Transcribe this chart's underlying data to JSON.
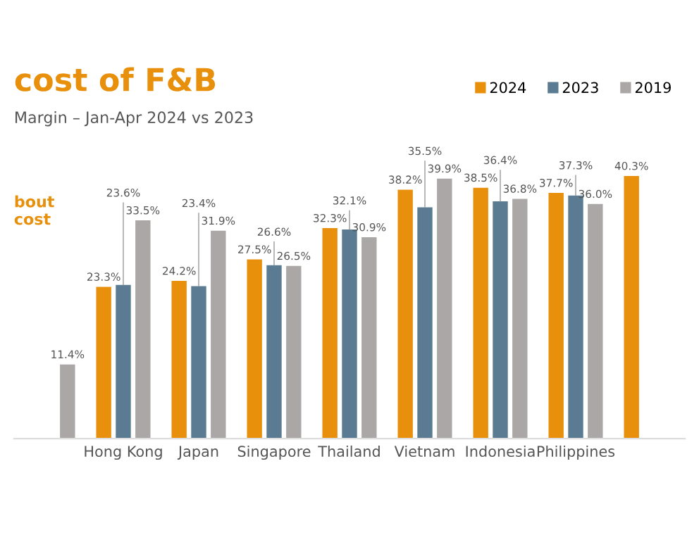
{
  "chart_data": {
    "type": "bar",
    "title": "cost of F&B",
    "subtitle": "Margin – Jan-Apr 2024 vs 2023",
    "annotations": [
      "bout\ncost"
    ],
    "categories": [
      null,
      "Hong Kong",
      "Japan",
      "Singapore",
      "Thailand",
      "Vietnam",
      "Indonesia",
      "Philippines",
      null
    ],
    "series": [
      {
        "name": "2024",
        "color": "#e8900c",
        "values": [
          null,
          23.3,
          24.2,
          27.5,
          32.3,
          38.2,
          38.5,
          37.7,
          40.3
        ],
        "value_labels": [
          null,
          "23.3%",
          "24.2%",
          "27.5%",
          "32.3%",
          "38.2%",
          "38.5%",
          "37.7%",
          "40.3%"
        ]
      },
      {
        "name": "2023",
        "color": "#5a7b91",
        "values": [
          null,
          23.6,
          23.4,
          26.6,
          32.1,
          35.5,
          36.4,
          37.3,
          null
        ],
        "value_labels": [
          null,
          "23.6%",
          "23.4%",
          "26.6%",
          "32.1%",
          "35.5%",
          "36.4%",
          "37.3%",
          null
        ]
      },
      {
        "name": "2019",
        "color": "#aba7a7",
        "values": [
          11.4,
          33.5,
          31.9,
          26.5,
          30.9,
          39.9,
          36.8,
          36.0,
          null
        ],
        "value_labels": [
          "11.4%",
          "33.5%",
          "31.9%",
          "26.5%",
          "30.9%",
          "39.9%",
          "36.8%",
          "36.0%",
          null
        ]
      }
    ],
    "legend": "top right",
    "grid": false
  }
}
